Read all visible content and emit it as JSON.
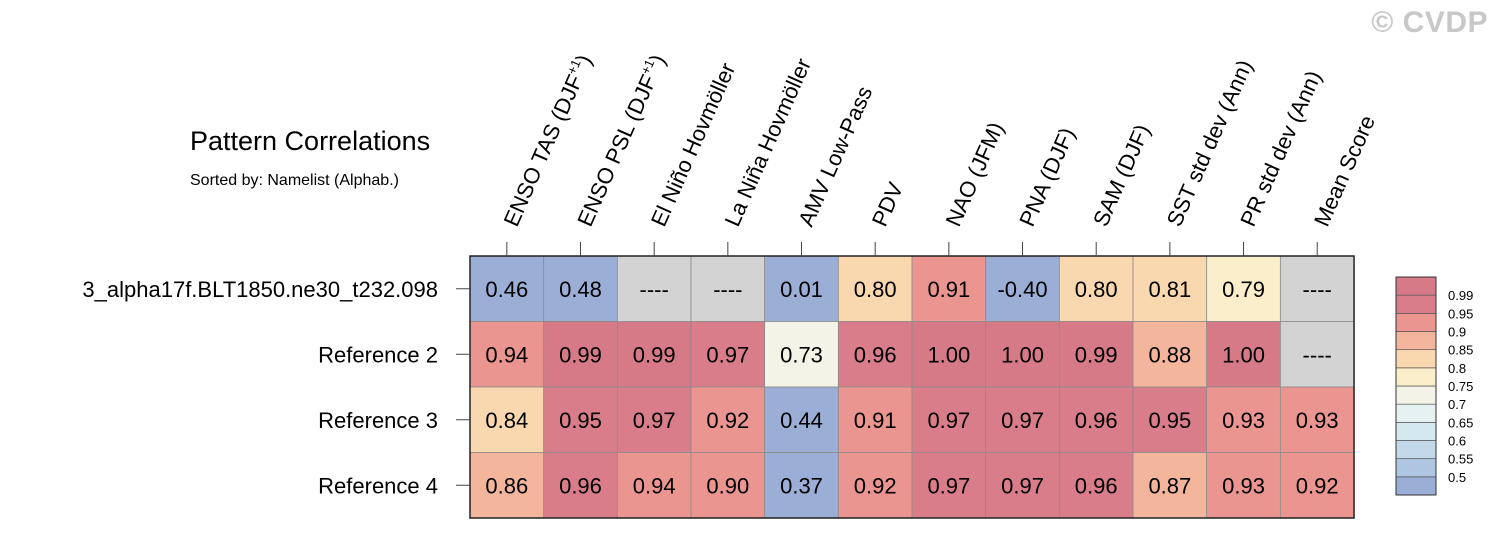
{
  "watermark": "© CVDP",
  "chart_data": {
    "type": "heatmap",
    "title": "Pattern Correlations",
    "subtitle": "Sorted by: Namelist (Alphab.)",
    "columns": [
      {
        "base": "ENSO TAS (DJF",
        "sup": "+1",
        "tail": ")"
      },
      {
        "base": "ENSO PSL (DJF",
        "sup": "+1",
        "tail": ")"
      },
      {
        "base": "El Niño Hovmöller"
      },
      {
        "base": "La Niña Hovmöller"
      },
      {
        "base": "AMV Low-Pass"
      },
      {
        "base": "PDV"
      },
      {
        "base": "NAO (JFM)"
      },
      {
        "base": "PNA (DJF)"
      },
      {
        "base": "SAM (DJF)"
      },
      {
        "base": "SST std dev (Ann)"
      },
      {
        "base": "PR std dev (Ann)"
      },
      {
        "base": "Mean Score"
      }
    ],
    "rows": [
      {
        "name": "3_alpha17f.BLT1850.ne30_t232.098",
        "values": [
          0.46,
          0.48,
          null,
          null,
          0.01,
          0.8,
          0.91,
          -0.4,
          0.8,
          0.81,
          0.79,
          null
        ]
      },
      {
        "name": "Reference 2",
        "values": [
          0.94,
          0.99,
          0.99,
          0.97,
          0.73,
          0.96,
          1.0,
          1.0,
          0.99,
          0.88,
          1.0,
          null
        ]
      },
      {
        "name": "Reference 3",
        "values": [
          0.84,
          0.95,
          0.97,
          0.92,
          0.44,
          0.91,
          0.97,
          0.97,
          0.96,
          0.95,
          0.93,
          0.93
        ]
      },
      {
        "name": "Reference 4",
        "values": [
          0.86,
          0.96,
          0.94,
          0.9,
          0.37,
          0.92,
          0.97,
          0.97,
          0.96,
          0.87,
          0.93,
          0.92
        ]
      }
    ],
    "missing_label": "----",
    "missing_color": "#d3d3d3",
    "levels": [
      "0.5",
      "0.55",
      "0.6",
      "0.65",
      "0.7",
      "0.75",
      "0.8",
      "0.85",
      "0.9",
      "0.95",
      "0.99"
    ],
    "colors": [
      "#9aaed6",
      "#aec6e0",
      "#c3d9ea",
      "#d4e8f0",
      "#e6f1f2",
      "#f3f3e8",
      "#fbefcb",
      "#f9d7af",
      "#f4b59d",
      "#eb9590",
      "#d97d8b",
      "#d67a88"
    ]
  }
}
